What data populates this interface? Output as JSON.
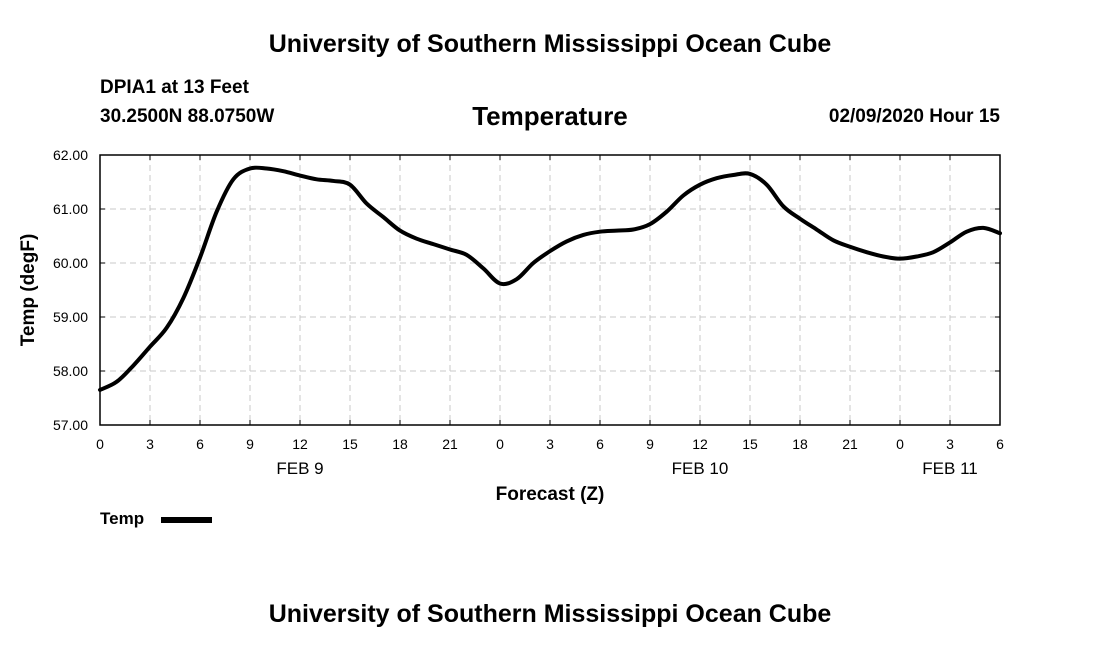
{
  "header": {
    "title": "University of Southern Mississippi Ocean Cube",
    "station": "DPIA1 at 13 Feet",
    "location": "30.2500N 88.0750W",
    "chart_title": "Temperature",
    "datetime": "02/09/2020 Hour 15"
  },
  "footer": {
    "title": "University of Southern Mississippi Ocean Cube"
  },
  "legend": {
    "label": "Temp"
  },
  "colors": {
    "line": "#000000",
    "grid": "#c8c8c8",
    "axis": "#000000"
  },
  "chart_data": {
    "type": "line",
    "title": "Temperature",
    "xlabel": "Forecast (Z)",
    "ylabel": "Temp (degF)",
    "xlim": [
      0,
      54
    ],
    "ylim": [
      57.0,
      62.0
    ],
    "x_ticks": [
      0,
      3,
      6,
      9,
      12,
      15,
      18,
      21,
      24,
      27,
      30,
      33,
      36,
      39,
      42,
      45,
      48,
      51,
      54
    ],
    "x_tick_labels": [
      "0",
      "3",
      "6",
      "9",
      "12",
      "15",
      "18",
      "21",
      "0",
      "3",
      "6",
      "9",
      "12",
      "15",
      "18",
      "21",
      "0",
      "3",
      "6"
    ],
    "y_ticks": [
      57.0,
      58.0,
      59.0,
      60.0,
      61.0,
      62.0
    ],
    "y_tick_labels": [
      "57.00",
      "58.00",
      "59.00",
      "60.00",
      "61.00",
      "62.00"
    ],
    "date_labels": [
      {
        "text": "FEB 9",
        "x": 12
      },
      {
        "text": "FEB 10",
        "x": 36
      },
      {
        "text": "FEB 11",
        "x": 51
      }
    ],
    "grid": true,
    "series": [
      {
        "name": "Temp",
        "x": [
          0,
          1,
          2,
          3,
          4,
          5,
          6,
          7,
          8,
          9,
          10,
          11,
          12,
          13,
          14,
          15,
          16,
          17,
          18,
          19,
          20,
          21,
          22,
          23,
          24,
          25,
          26,
          27,
          28,
          29,
          30,
          31,
          32,
          33,
          34,
          35,
          36,
          37,
          38,
          39,
          40,
          41,
          42,
          43,
          44,
          45,
          46,
          47,
          48,
          49,
          50,
          51,
          52,
          53,
          54
        ],
        "values": [
          57.65,
          57.8,
          58.1,
          58.45,
          58.8,
          59.35,
          60.1,
          60.95,
          61.55,
          61.75,
          61.75,
          61.7,
          61.62,
          61.55,
          61.52,
          61.45,
          61.1,
          60.85,
          60.6,
          60.45,
          60.35,
          60.25,
          60.15,
          59.9,
          59.62,
          59.7,
          60.0,
          60.22,
          60.4,
          60.52,
          60.58,
          60.6,
          60.62,
          60.72,
          60.95,
          61.25,
          61.45,
          61.57,
          61.63,
          61.65,
          61.45,
          61.05,
          60.82,
          60.62,
          60.42,
          60.3,
          60.2,
          60.12,
          60.08,
          60.12,
          60.2,
          60.38,
          60.58,
          60.65,
          60.55
        ]
      }
    ]
  }
}
